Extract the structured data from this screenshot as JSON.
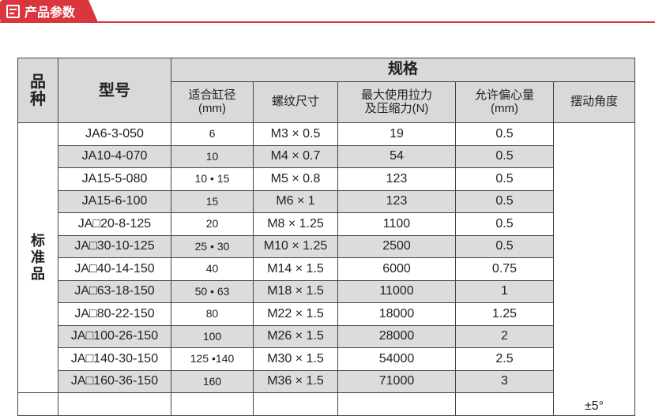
{
  "banner": {
    "title": "产品参数",
    "icon": "document-icon",
    "color": "#d9373d"
  },
  "table": {
    "h_category": "品\n种",
    "h_model": "型号",
    "h_spec": "规格",
    "h_bore": "适合缸径\n(mm)",
    "h_thread": "螺纹尺寸",
    "h_force": "最大使用拉力\n及压缩力(N)",
    "h_ecc": "允许偏心量\n(mm)",
    "h_angle": "摆动角度",
    "category": "标\n准\n品",
    "angle": "±5°",
    "rows": [
      [
        "JA6-3-050",
        "6",
        "M3 × 0.5",
        "19",
        "0.5"
      ],
      [
        "JA10-4-070",
        "10",
        "M4 × 0.7",
        "54",
        "0.5"
      ],
      [
        "JA15-5-080",
        "10 • 15",
        "M5 × 0.8",
        "123",
        "0.5"
      ],
      [
        "JA15-6-100",
        "15",
        "M6 × 1",
        "123",
        "0.5"
      ],
      [
        "JA□20-8-125",
        "20",
        "M8 × 1.25",
        "1100",
        "0.5"
      ],
      [
        "JA□30-10-125",
        "25 • 30",
        "M10 × 1.25",
        "2500",
        "0.5"
      ],
      [
        "JA□40-14-150",
        "40",
        "M14 × 1.5",
        "6000",
        "0.75"
      ],
      [
        "JA□63-18-150",
        "50 • 63",
        "M18 × 1.5",
        "11000",
        "1"
      ],
      [
        "JA□80-22-150",
        "80",
        "M22 × 1.5",
        "18000",
        "1.25"
      ],
      [
        "JA□100-26-150",
        "100",
        "M26 × 1.5",
        "28000",
        "2"
      ],
      [
        "JA□140-30-150",
        "125 •140",
        "M30 × 1.5",
        "54000",
        "2.5"
      ],
      [
        "JA□160-36-150",
        "160",
        "M36 × 1.5",
        "71000",
        "3"
      ]
    ]
  }
}
